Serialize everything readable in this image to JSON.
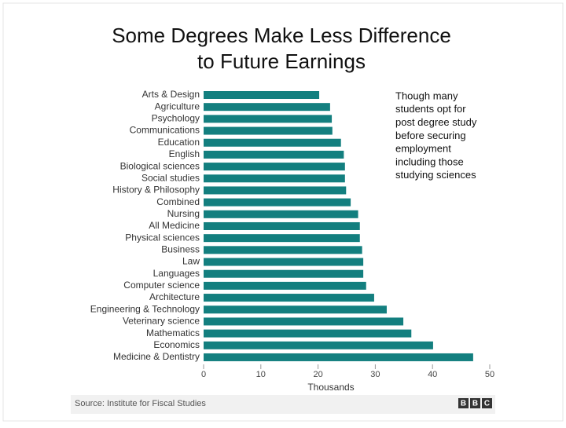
{
  "slide": {
    "title": [
      "Some Degrees Make Less Difference",
      "to Future Earnings"
    ],
    "note": [
      "Though many",
      "students opt for",
      "post degree study",
      "before securing",
      "employment",
      "including those",
      "studying sciences"
    ]
  },
  "chart_data": {
    "type": "hbar",
    "categories": [
      "Arts & Design",
      "Agriculture",
      "Psychology",
      "Communications",
      "Education",
      "English",
      "Biological sciences",
      "Social studies",
      "History & Philosophy",
      "Combined",
      "Nursing",
      "All Medicine",
      "Physical sciences",
      "Business",
      "Law",
      "Languages",
      "Computer science",
      "Architecture",
      "Engineering & Technology",
      "Veterinary science",
      "Mathematics",
      "Economics",
      "Medicine & Dentistry"
    ],
    "values": [
      20.2,
      22.1,
      22.4,
      22.5,
      24,
      24.5,
      24.7,
      24.7,
      24.9,
      25.7,
      27,
      27.3,
      27.3,
      27.7,
      27.9,
      27.9,
      28.4,
      29.8,
      32,
      34.9,
      36.3,
      40.1,
      47.1
    ],
    "color": "#137f7f",
    "xlim": [
      0,
      50
    ],
    "xticks": [
      0,
      10,
      20,
      30,
      40,
      50
    ],
    "x_label": "Thousands",
    "source": "Source: Institute for Fiscal Studies",
    "logo": [
      "B",
      "B",
      "C"
    ]
  }
}
